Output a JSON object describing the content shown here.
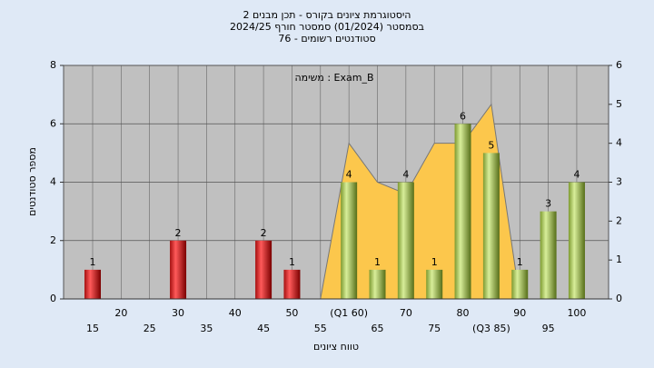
{
  "chart_data": {
    "type": "bar",
    "title_lines": [
      "היסטוגרמת ציונים בקורס - תכן מבנים 2",
      "בסמסטר  (01/2024)  סמסטר חורף 2024/25",
      "סטודנטים רשומים - 76"
    ],
    "annotation": "משימה : Exam_B",
    "ylabel": "מספר סטודנטים",
    "xlabel": "טווח ציונים",
    "categories": [
      "15",
      "20",
      "25",
      "30",
      "35",
      "40",
      "45",
      "50",
      "55",
      "(Q1 60)",
      "65",
      "70",
      "75",
      "80",
      "(Q3 85)",
      "90",
      "95",
      "100"
    ],
    "series": [
      {
        "type": "bar",
        "values": [
          1,
          0,
          0,
          2,
          0,
          0,
          2,
          1,
          0,
          4,
          1,
          4,
          1,
          6,
          5,
          1,
          3,
          4
        ],
        "colors": [
          "red",
          "red",
          "red",
          "red",
          "red",
          "red",
          "red",
          "red",
          "red",
          "green",
          "green",
          "green",
          "green",
          "green",
          "green",
          "green",
          "green",
          "green"
        ]
      },
      {
        "type": "area",
        "axis": "y2",
        "color": "#fcc74c",
        "values": [
          null,
          null,
          null,
          null,
          null,
          null,
          null,
          null,
          0,
          4,
          3,
          2.7,
          4,
          4,
          5,
          0,
          null,
          null
        ]
      }
    ],
    "ylim": [
      0,
      8
    ],
    "yticks": [
      0,
      2,
      4,
      6,
      8
    ],
    "y2lim": [
      0,
      6
    ],
    "y2ticks": [
      0,
      1,
      2,
      3,
      4,
      5,
      6
    ],
    "grid": true
  }
}
